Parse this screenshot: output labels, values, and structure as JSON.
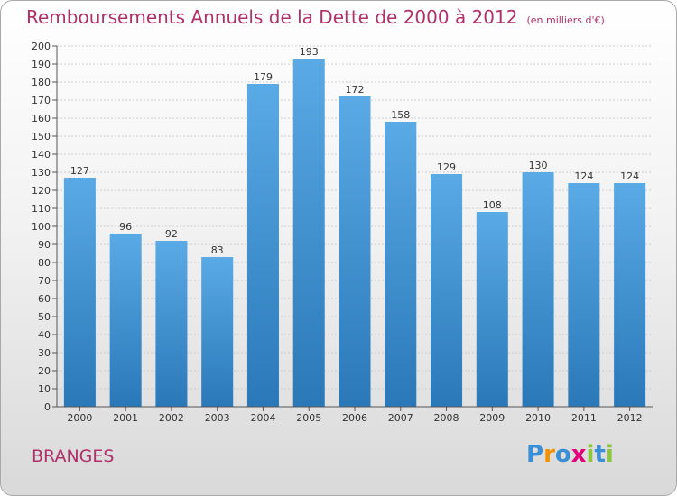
{
  "title": "Remboursements Annuels de la Dette de 2000 à 2012",
  "subtitle": "(en milliers d'€)",
  "place": "BRANGES",
  "logo": {
    "text": "Proxiti",
    "letters": [
      {
        "ch": "P",
        "color": "#3a8fd6"
      },
      {
        "ch": "r",
        "color": "#f39200"
      },
      {
        "ch": "o",
        "color": "#3a8fd6"
      },
      {
        "ch": "x",
        "color": "#e2007a"
      },
      {
        "ch": "i",
        "color": "#8cc63f"
      },
      {
        "ch": "t",
        "color": "#3a8fd6"
      },
      {
        "ch": "i",
        "color": "#8cc63f"
      }
    ]
  },
  "colors": {
    "bar_top": "#5aaae6",
    "bar_bottom": "#2a78b8",
    "title": "#b0306a",
    "grid": "#cccccc"
  },
  "chart_data": {
    "type": "bar",
    "title": "Remboursements Annuels de la Dette de 2000 à 2012",
    "subtitle": "(en milliers d'€)",
    "xlabel": "",
    "ylabel": "",
    "categories": [
      "2000",
      "2001",
      "2002",
      "2003",
      "2004",
      "2005",
      "2006",
      "2007",
      "2008",
      "2009",
      "2010",
      "2011",
      "2012"
    ],
    "values": [
      127,
      96,
      92,
      83,
      179,
      193,
      172,
      158,
      129,
      108,
      130,
      124,
      124
    ],
    "ylim": [
      0,
      200
    ],
    "yticks": [
      0,
      10,
      20,
      30,
      40,
      50,
      60,
      70,
      80,
      90,
      100,
      110,
      120,
      130,
      140,
      150,
      160,
      170,
      180,
      190,
      200
    ],
    "grid": true,
    "data_labels": true
  }
}
